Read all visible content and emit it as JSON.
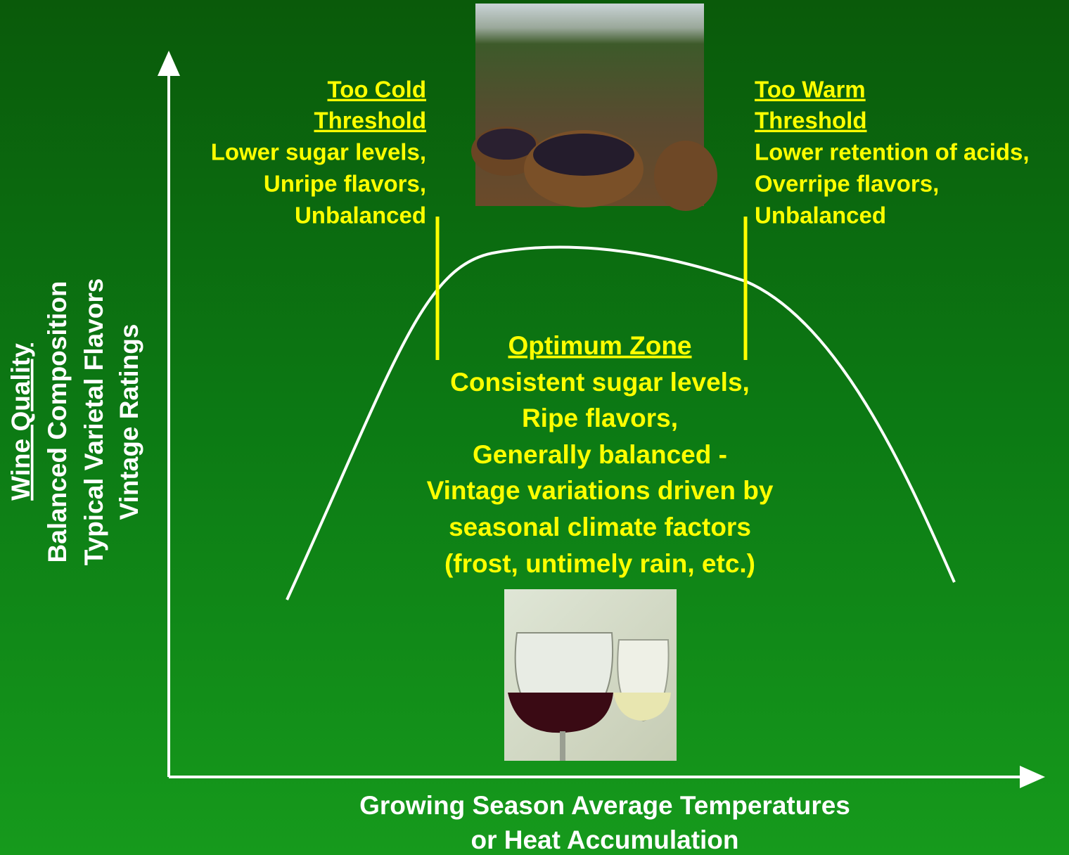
{
  "y_axis_label": {
    "lines": [
      "Wine Quality",
      "Balanced Composition",
      "Typical Varietal Flavors",
      "Vintage Ratings"
    ]
  },
  "x_axis_label": {
    "lines": [
      "Growing Season Average Temperatures",
      "or Heat Accumulation"
    ]
  },
  "too_cold": {
    "lines": [
      "Too Cold",
      "Threshold",
      "Lower sugar levels,",
      "Unripe flavors,",
      "Unbalanced"
    ]
  },
  "too_warm": {
    "lines": [
      "Too Warm",
      "Threshold",
      "Lower retention of acids,",
      "Overripe flavors,",
      "Unbalanced"
    ]
  },
  "optimum": {
    "lines": [
      "Optimum Zone",
      "Consistent sugar levels,",
      "Ripe flavors,",
      "Generally balanced -",
      "Vintage variations driven by",
      "seasonal climate factors",
      "(frost, untimely rain, etc.)"
    ]
  }
}
